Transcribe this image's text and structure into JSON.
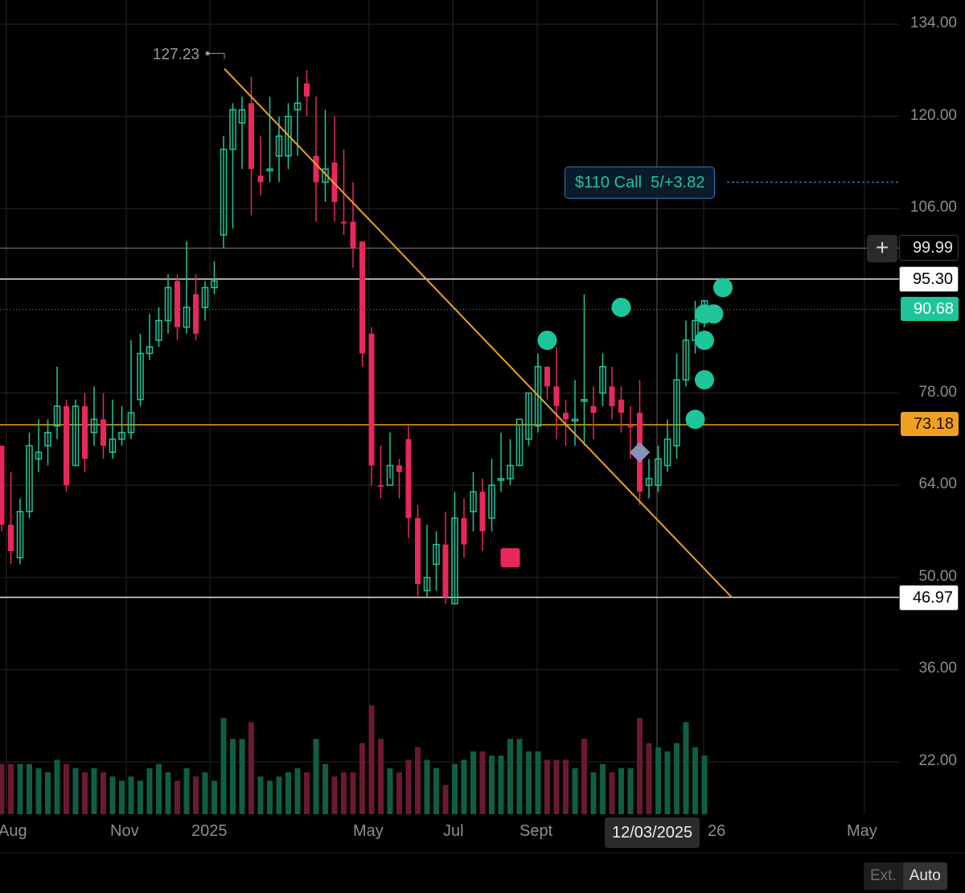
{
  "colors": {
    "up": "#1fc59a",
    "down": "#e8285a",
    "vol_up": "#0f5e45",
    "vol_down": "#6a1a30",
    "trendline": "#f0a020",
    "grid": "#262626",
    "background": "#000000"
  },
  "chart_data": {
    "type": "candlestick",
    "x_labels": [
      "Aug",
      "Nov",
      "2025",
      "May",
      "Jul",
      "Sept",
      "26",
      "May"
    ],
    "y_ticks": [
      "134.00",
      "120.00",
      "106.00",
      "78.00",
      "64.00",
      "50.00",
      "36.00",
      "22.00"
    ],
    "y_range": [
      22,
      134
    ],
    "high_annotation": "127.23",
    "levels": [
      {
        "label": "99.99",
        "value": 99.99,
        "kind": "line"
      },
      {
        "label": "95.30",
        "value": 95.3,
        "kind": "line"
      },
      {
        "label": "90.68",
        "value": 90.68,
        "kind": "last-price"
      },
      {
        "label": "73.18",
        "value": 73.18,
        "kind": "trendline-level"
      },
      {
        "label": "46.97",
        "value": 46.97,
        "kind": "line"
      }
    ],
    "trendline": {
      "from_index": 24,
      "from_price": 127.23,
      "to_index": 78,
      "to_price": 46.97
    },
    "candles": [
      [
        70,
        70,
        58,
        57,
        "d"
      ],
      [
        58,
        66,
        54,
        52,
        "d"
      ],
      [
        53,
        62,
        60,
        52,
        "u"
      ],
      [
        60,
        72,
        70,
        59,
        "u"
      ],
      [
        68,
        74,
        69,
        66,
        "u"
      ],
      [
        70,
        74,
        72,
        67,
        "u"
      ],
      [
        73,
        82,
        76,
        71,
        "u"
      ],
      [
        76,
        77,
        64,
        63,
        "d"
      ],
      [
        67,
        77,
        76,
        67,
        "u"
      ],
      [
        76,
        78,
        68,
        66,
        "d"
      ],
      [
        72,
        79,
        74,
        70,
        "u"
      ],
      [
        74,
        78,
        70,
        68,
        "d"
      ],
      [
        69,
        77,
        71,
        68,
        "u"
      ],
      [
        71,
        76,
        72,
        70,
        "u"
      ],
      [
        72,
        86,
        75,
        71,
        "u"
      ],
      [
        77,
        87,
        84,
        76,
        "u"
      ],
      [
        84,
        90,
        85,
        83,
        "u"
      ],
      [
        86,
        91,
        89,
        85,
        "u"
      ],
      [
        89,
        96,
        94,
        87,
        "u"
      ],
      [
        95,
        96,
        88,
        86,
        "d"
      ],
      [
        88,
        101,
        91,
        87,
        "u"
      ],
      [
        93,
        96,
        87,
        86,
        "d"
      ],
      [
        91,
        95,
        94,
        89,
        "u"
      ],
      [
        94,
        98,
        95,
        93,
        "u"
      ],
      [
        102,
        117,
        115,
        100,
        "u"
      ],
      [
        115,
        122,
        121,
        103,
        "u"
      ],
      [
        121,
        123,
        119,
        112,
        "u"
      ],
      [
        122,
        126,
        112,
        105,
        "d"
      ],
      [
        111,
        117,
        110,
        108,
        "d"
      ],
      [
        112,
        123,
        112,
        110,
        "u"
      ],
      [
        117,
        120,
        114,
        110,
        "u"
      ],
      [
        114,
        122,
        120,
        112,
        "u"
      ],
      [
        121,
        126,
        122,
        114,
        "u"
      ],
      [
        125,
        127,
        123,
        120,
        "d"
      ],
      [
        114,
        123,
        110,
        104,
        "d"
      ],
      [
        110,
        121,
        112,
        107,
        "u"
      ],
      [
        113,
        120,
        107,
        104,
        "d"
      ],
      [
        104,
        115,
        104,
        102,
        "d"
      ],
      [
        104,
        110,
        100,
        97,
        "d"
      ],
      [
        101,
        101,
        84,
        82,
        "d"
      ],
      [
        87,
        88,
        67,
        64,
        "d"
      ],
      [
        64,
        70,
        64,
        62,
        "d"
      ],
      [
        64,
        72,
        67,
        65,
        "u"
      ],
      [
        67,
        68,
        66,
        62,
        "d"
      ],
      [
        71,
        73,
        59,
        56,
        "d"
      ],
      [
        59,
        61,
        49,
        47,
        "d"
      ],
      [
        48,
        58,
        50,
        47,
        "u"
      ],
      [
        52,
        57,
        55,
        48,
        "u"
      ],
      [
        55,
        60,
        47,
        46,
        "d"
      ],
      [
        46,
        63,
        59,
        46,
        "u"
      ],
      [
        59,
        62,
        55,
        53,
        "d"
      ],
      [
        60,
        66,
        63,
        57,
        "u"
      ],
      [
        63,
        65,
        57,
        54,
        "d"
      ],
      [
        59,
        68,
        64,
        57,
        "u"
      ],
      [
        65,
        72,
        65,
        63,
        "u"
      ],
      [
        65,
        71,
        67,
        64,
        "u"
      ],
      [
        67,
        73,
        74,
        67,
        "u"
      ],
      [
        71,
        78,
        78,
        70,
        "u"
      ],
      [
        73,
        84,
        82,
        72,
        "u"
      ],
      [
        82,
        80,
        79,
        77,
        "d"
      ],
      [
        79,
        85,
        76,
        71,
        "d"
      ],
      [
        75,
        77,
        74,
        70,
        "d"
      ],
      [
        74,
        80,
        74,
        70,
        "u"
      ],
      [
        77,
        93,
        77,
        70,
        "u"
      ],
      [
        76,
        79,
        75,
        71,
        "d"
      ],
      [
        78,
        84,
        82,
        76,
        "u"
      ],
      [
        79,
        82,
        76,
        74,
        "d"
      ],
      [
        77,
        79,
        75,
        72,
        "d"
      ],
      [
        73,
        76,
        73,
        68,
        "d"
      ],
      [
        75,
        80,
        63,
        61,
        "d"
      ],
      [
        64,
        68,
        65,
        62,
        "u"
      ],
      [
        64,
        70,
        68,
        63,
        "u"
      ],
      [
        67,
        74,
        71,
        66,
        "u"
      ],
      [
        70,
        84,
        80,
        68,
        "u"
      ],
      [
        80,
        89,
        86,
        79,
        "u"
      ],
      [
        86,
        92,
        89,
        84,
        "u"
      ],
      [
        90,
        92,
        92,
        88,
        "u"
      ]
    ],
    "volume": [
      [
        22,
        "d"
      ],
      [
        22,
        "d"
      ],
      [
        22,
        "u"
      ],
      [
        22,
        "u"
      ],
      [
        21,
        "u"
      ],
      [
        20,
        "u"
      ],
      [
        23,
        "u"
      ],
      [
        22,
        "d"
      ],
      [
        21,
        "u"
      ],
      [
        20,
        "d"
      ],
      [
        21,
        "u"
      ],
      [
        20,
        "d"
      ],
      [
        19,
        "u"
      ],
      [
        18,
        "u"
      ],
      [
        19,
        "u"
      ],
      [
        18,
        "u"
      ],
      [
        21,
        "u"
      ],
      [
        22,
        "u"
      ],
      [
        20,
        "u"
      ],
      [
        18,
        "d"
      ],
      [
        21,
        "u"
      ],
      [
        19,
        "d"
      ],
      [
        20,
        "u"
      ],
      [
        18,
        "u"
      ],
      [
        33,
        "u"
      ],
      [
        28,
        "u"
      ],
      [
        28,
        "u"
      ],
      [
        32,
        "d"
      ],
      [
        19,
        "u"
      ],
      [
        18,
        "u"
      ],
      [
        19,
        "u"
      ],
      [
        20,
        "u"
      ],
      [
        21,
        "u"
      ],
      [
        20,
        "d"
      ],
      [
        28,
        "u"
      ],
      [
        22,
        "u"
      ],
      [
        19,
        "d"
      ],
      [
        20,
        "d"
      ],
      [
        20,
        "d"
      ],
      [
        27,
        "d"
      ],
      [
        36,
        "d"
      ],
      [
        28,
        "d"
      ],
      [
        21,
        "u"
      ],
      [
        20,
        "d"
      ],
      [
        23,
        "d"
      ],
      [
        26,
        "d"
      ],
      [
        23,
        "u"
      ],
      [
        21,
        "u"
      ],
      [
        17,
        "d"
      ],
      [
        22,
        "u"
      ],
      [
        23,
        "u"
      ],
      [
        25,
        "u"
      ],
      [
        25,
        "d"
      ],
      [
        24,
        "u"
      ],
      [
        24,
        "u"
      ],
      [
        28,
        "u"
      ],
      [
        28,
        "u"
      ],
      [
        25,
        "u"
      ],
      [
        25,
        "u"
      ],
      [
        23,
        "d"
      ],
      [
        23,
        "d"
      ],
      [
        23,
        "d"
      ],
      [
        21,
        "u"
      ],
      [
        28,
        "d"
      ],
      [
        20,
        "u"
      ],
      [
        22,
        "u"
      ],
      [
        20,
        "d"
      ],
      [
        21,
        "u"
      ],
      [
        21,
        "u"
      ],
      [
        33,
        "d"
      ],
      [
        27,
        "d"
      ],
      [
        26,
        "u"
      ],
      [
        25,
        "u"
      ],
      [
        27,
        "u"
      ],
      [
        32,
        "u"
      ],
      [
        26,
        "u"
      ],
      [
        24,
        "u"
      ]
    ],
    "signals": [
      {
        "index": 59,
        "price": 86,
        "shape": "circle"
      },
      {
        "index": 67,
        "price": 91,
        "shape": "circle"
      },
      {
        "index": 75,
        "price": 74,
        "shape": "circle"
      },
      {
        "index": 76,
        "price": 80,
        "shape": "circle"
      },
      {
        "index": 76,
        "price": 86,
        "shape": "circle"
      },
      {
        "index": 76,
        "price": 90,
        "shape": "circle"
      },
      {
        "index": 77,
        "price": 90,
        "shape": "circle"
      },
      {
        "index": 78,
        "price": 94,
        "shape": "circle"
      },
      {
        "index": 55,
        "price": 53,
        "shape": "square"
      },
      {
        "index": 69,
        "price": 69,
        "shape": "diamond"
      }
    ]
  },
  "option_order": {
    "label": "$110 Call",
    "detail": "5/+3.82",
    "price": 110
  },
  "date_cursor": "12/03/2025",
  "toolbar": {
    "ext_label": "Ext.",
    "auto_label": "Auto"
  }
}
